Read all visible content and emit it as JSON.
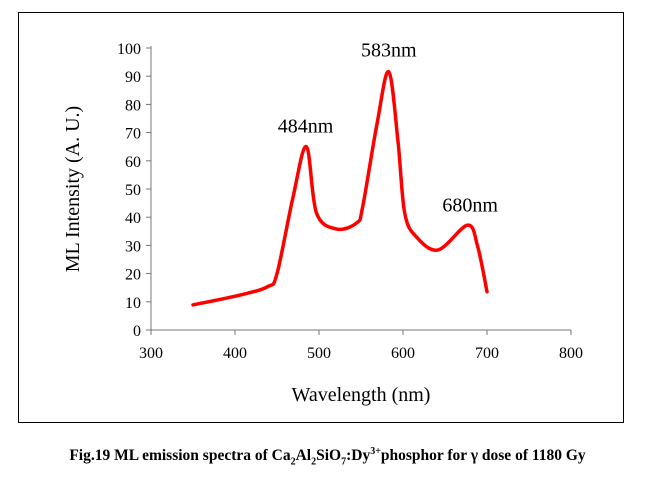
{
  "chart_data": {
    "type": "line",
    "title": "",
    "xlabel": "Wavelength (nm)",
    "ylabel": "ML Intensity (A. U.)",
    "xlim": [
      300,
      800
    ],
    "ylim": [
      0,
      100
    ],
    "xticks": [
      300,
      400,
      500,
      600,
      700,
      800
    ],
    "yticks": [
      0,
      10,
      20,
      30,
      40,
      50,
      60,
      70,
      80,
      90,
      100
    ],
    "grid": false,
    "series": [
      {
        "name": "ML emission",
        "color": "#ff0000",
        "x": [
          350,
          406,
          439,
          450,
          469,
          485,
          497,
          521,
          545,
          552,
          569,
          583,
          594,
          602,
          616,
          642,
          677,
          689,
          700
        ],
        "y": [
          8.9,
          12.4,
          15.4,
          20,
          47,
          65,
          41.5,
          35.8,
          38,
          43.7,
          73,
          91.6,
          67,
          41.5,
          33,
          28.4,
          37.2,
          29.5,
          13.6
        ]
      }
    ],
    "annotations": [
      {
        "text": "484nm",
        "x": 484,
        "y": 70
      },
      {
        "text": "583nm",
        "x": 583,
        "y": 97
      },
      {
        "text": "680nm",
        "x": 680,
        "y": 42
      }
    ]
  },
  "caption": {
    "prefix": "Fig.19 ML emission spectra of Ca",
    "s1": "2",
    "t1": "Al",
    "s2": "2",
    "t2": "SiO",
    "s3": "7",
    "t3": ":Dy",
    "sup": "3+",
    "suffix": "phosphor for γ dose of 1180 Gy"
  }
}
